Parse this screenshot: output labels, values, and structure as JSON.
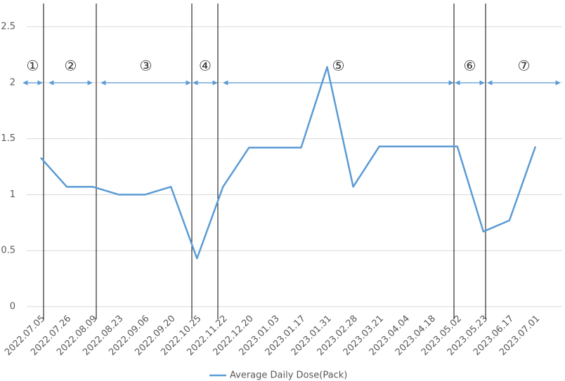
{
  "chart_data": {
    "type": "line",
    "categories": [
      "2022.07.05",
      "2022.07.26",
      "2022.08.09",
      "2022.08.23",
      "2022.09.06",
      "2022.09.20",
      "2022.10.25",
      "2022.11.22",
      "2022.12.20",
      "2023.01.03",
      "2023.01.17",
      "2023.01.31",
      "2023.02.28",
      "2023.03.21",
      "2023.04.04",
      "2023.04.18",
      "2023.05.02",
      "2023.05.23",
      "2023.06.17",
      "2023.07.01"
    ],
    "series": [
      {
        "name": "Average Daily Dose(Pack)",
        "color": "#5b9bd5",
        "values": [
          1.33,
          1.07,
          1.07,
          1.0,
          1.0,
          1.07,
          0.43,
          1.07,
          1.42,
          1.42,
          1.42,
          2.14,
          1.07,
          1.43,
          1.43,
          1.43,
          1.43,
          0.67,
          0.77,
          1.43
        ]
      }
    ],
    "ylim": [
      0,
      2.5
    ],
    "yticks": [
      0,
      0.5,
      1,
      1.5,
      2,
      2.5
    ],
    "grid": true,
    "annotations": [
      "①",
      "②",
      "③",
      "④",
      "⑤",
      "⑥",
      "⑦"
    ]
  }
}
